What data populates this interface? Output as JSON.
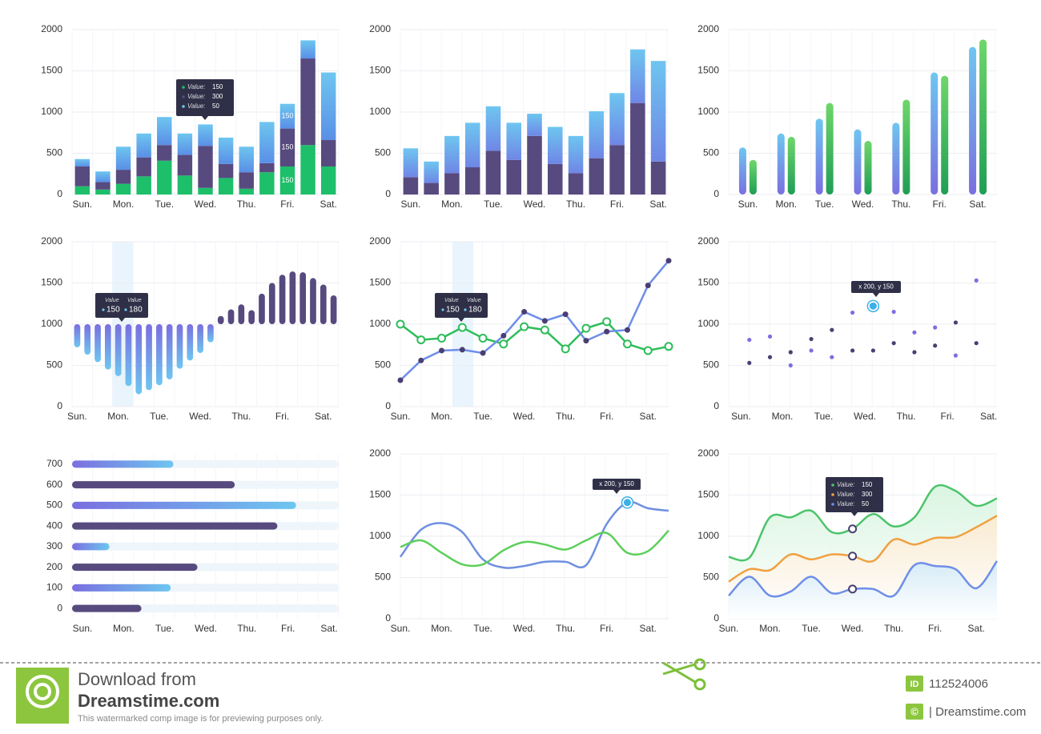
{
  "chart_data": [
    {
      "type": "stacked_bar",
      "categories": [
        "Sun.",
        null,
        "Mon.",
        null,
        "Tue.",
        null,
        "Wed.",
        null,
        "Thu.",
        null,
        "Fri.",
        null,
        "Sat."
      ],
      "ylim": [
        0,
        2000
      ],
      "yticks": [
        0,
        500,
        1000,
        1500,
        2000
      ],
      "series": [
        {
          "color": "#1dbf6a",
          "values": [
            100,
            60,
            130,
            220,
            410,
            230,
            80,
            200,
            70,
            270,
            340,
            600,
            340
          ]
        },
        {
          "color": "#574a7e",
          "values": [
            240,
            90,
            170,
            230,
            190,
            250,
            510,
            170,
            200,
            110,
            460,
            1050,
            320
          ]
        },
        {
          "color": "#6ec6f0",
          "color2": "#5a8fe6",
          "values": [
            90,
            130,
            280,
            290,
            340,
            260,
            260,
            320,
            310,
            500,
            300,
            220,
            820
          ]
        }
      ],
      "annotations": [
        "150",
        "150",
        "150"
      ],
      "tooltip": {
        "rows": [
          {
            "label": "Value:",
            "value": "150"
          },
          {
            "label": "Value:",
            "value": "300"
          },
          {
            "label": "Value:",
            "value": "50"
          }
        ]
      }
    },
    {
      "type": "stacked_bar",
      "categories": [
        "Sun.",
        null,
        "Mon.",
        null,
        "Tue.",
        null,
        "Wed.",
        null,
        "Thu.",
        null,
        "Fri.",
        null,
        "Sat."
      ],
      "ylim": [
        0,
        2000
      ],
      "yticks": [
        0,
        500,
        1000,
        1500,
        2000
      ],
      "series": [
        {
          "color": "#574a7e",
          "values": [
            210,
            140,
            260,
            330,
            530,
            420,
            710,
            370,
            260,
            440,
            600,
            1110,
            400
          ]
        },
        {
          "color": "#6ec6f0",
          "color2": "#6f86e6",
          "values": [
            350,
            260,
            450,
            540,
            540,
            450,
            270,
            450,
            450,
            570,
            630,
            650,
            1220
          ]
        }
      ]
    },
    {
      "type": "bar",
      "categories": [
        "Sun.",
        "Mon.",
        "Tue.",
        "Wed.",
        "Thu.",
        "Fri.",
        "Sat."
      ],
      "ylim": [
        0,
        2000
      ],
      "yticks": [
        0,
        500,
        1000,
        1500,
        2000
      ],
      "series": [
        {
          "color": "#6ec6f0",
          "color2": "#7a6fe0",
          "values": [
            570,
            740,
            920,
            790,
            870,
            1480,
            1790
          ]
        },
        {
          "color": "#6fd66a",
          "color2": "#1f9e55",
          "values": [
            420,
            700,
            1110,
            650,
            1150,
            1440,
            1880
          ]
        }
      ]
    },
    {
      "type": "diverging_bar",
      "categories": [
        "Sun.",
        null,
        null,
        null,
        "Mon.",
        null,
        null,
        null,
        "Tue.",
        null,
        null,
        null,
        "Wed.",
        null,
        null,
        null,
        "Thu.",
        null,
        null,
        null,
        "Fri.",
        null,
        null,
        null,
        "Sat.",
        null
      ],
      "ylim": [
        0,
        2000
      ],
      "yticks": [
        0,
        500,
        1000,
        1500,
        2000
      ],
      "baseline": 1000,
      "values": [
        720,
        630,
        540,
        450,
        370,
        250,
        150,
        200,
        260,
        330,
        460,
        560,
        650,
        780,
        1100,
        1180,
        1240,
        1170,
        1370,
        1500,
        1600,
        1640,
        1630,
        1560,
        1480,
        1350
      ],
      "color": "#574a7e",
      "color_below": "#7a6fe0",
      "color_below2": "#6ec6f0",
      "tooltip": {
        "rows": [
          {
            "label": "Value",
            "value": "150"
          },
          {
            "label": "Value",
            "value": "180"
          }
        ]
      }
    },
    {
      "type": "line",
      "categories": [
        "Sun.",
        null,
        "Mon.",
        null,
        "Tue.",
        null,
        "Wed.",
        null,
        "Thu.",
        null,
        "Fri.",
        null,
        "Sat.",
        null
      ],
      "ylim": [
        0,
        2000
      ],
      "yticks": [
        0,
        500,
        1000,
        1500,
        2000
      ],
      "series": [
        {
          "color": "#2dbd5a",
          "marker": "hollow",
          "values": [
            1000,
            810,
            830,
            960,
            830,
            760,
            970,
            930,
            700,
            950,
            1030,
            760,
            680,
            730
          ]
        },
        {
          "color": "#6e8ee8",
          "marker_color": "#4a3f72",
          "marker": "dot",
          "values": [
            320,
            560,
            680,
            690,
            650,
            860,
            1150,
            1040,
            1120,
            800,
            910,
            930,
            1470,
            1770
          ]
        }
      ],
      "tooltip": {
        "rows": [
          {
            "label": "Value",
            "value": "150"
          },
          {
            "label": "Value",
            "value": "180"
          }
        ]
      }
    },
    {
      "type": "scatter",
      "categories": [
        "Sun.",
        "Mon.",
        "Tue.",
        "Wed.",
        "Thu.",
        "Fri.",
        "Sat."
      ],
      "xlim": [
        -0.3,
        6.2
      ],
      "ylim": [
        0,
        2000
      ],
      "yticks": [
        0,
        500,
        1000,
        1500,
        2000
      ],
      "series": [
        {
          "color": "#7b6fe0",
          "x": [
            0.2,
            0.7,
            1.2,
            1.7,
            2.2,
            2.7,
            3.2,
            3.7,
            4.2,
            4.7,
            5.2,
            5.7
          ],
          "values": [
            810,
            850,
            500,
            680,
            600,
            1140,
            1220,
            1150,
            900,
            960,
            620,
            1530
          ]
        },
        {
          "color": "#4a3f72",
          "x": [
            0.2,
            0.7,
            1.2,
            1.7,
            2.2,
            2.7,
            3.2,
            3.7,
            4.2,
            4.7,
            5.2,
            5.7
          ],
          "values": [
            530,
            600,
            660,
            820,
            930,
            680,
            680,
            770,
            660,
            740,
            1020,
            770
          ]
        }
      ],
      "tooltip": {
        "text": "x 200, y 150"
      }
    },
    {
      "type": "hbar",
      "categories": [
        "700",
        "600",
        "500",
        "400",
        "300",
        "200",
        "100",
        "0"
      ],
      "values": [
        38,
        61,
        84,
        77,
        14,
        47,
        37,
        26
      ],
      "xlim": [
        0,
        100
      ],
      "colors": [
        "#7a6fe0",
        "#574a7e",
        "#7a6fe0",
        "#574a7e",
        "#7a6fe0",
        "#574a7e",
        "#7a6fe0",
        "#574a7e"
      ],
      "colors_end": [
        "#6ec6f0",
        "#574a7e",
        "#6ec6f0",
        "#574a7e",
        "#6ec6f0",
        "#574a7e",
        "#6ec6f0",
        "#574a7e"
      ],
      "track_color": "#eef5fb",
      "x_categories": [
        "Sun.",
        "Mon.",
        "Tue.",
        "Wed.",
        "Thu.",
        "Fri.",
        "Sat."
      ]
    },
    {
      "type": "spline",
      "categories": [
        "Sun.",
        null,
        "Mon.",
        null,
        "Tue.",
        null,
        "Wed.",
        null,
        "Thu.",
        null,
        "Fri.",
        null,
        "Sat.",
        null
      ],
      "ylim": [
        0,
        2000
      ],
      "yticks": [
        0,
        500,
        1000,
        1500,
        2000
      ],
      "series": [
        {
          "color": "#6f8fe0",
          "values": [
            750,
            1080,
            1160,
            1050,
            720,
            620,
            640,
            690,
            690,
            650,
            1150,
            1410,
            1340,
            1310
          ]
        },
        {
          "color": "#5ccf5a",
          "values": [
            870,
            950,
            800,
            660,
            660,
            830,
            930,
            900,
            840,
            950,
            1040,
            800,
            820,
            1070
          ]
        }
      ],
      "tooltip": {
        "text": "x 200, y 150"
      }
    },
    {
      "type": "area",
      "categories": [
        "Sun.",
        null,
        "Mon.",
        null,
        "Tue.",
        null,
        "Wed.",
        null,
        "Thu.",
        null,
        "Fri.",
        null,
        "Sat.",
        null
      ],
      "ylim": [
        0,
        2000
      ],
      "yticks": [
        0,
        500,
        1000,
        1500,
        2000
      ],
      "series": [
        {
          "color": "#4cc46a",
          "fill": "#d4f3dc",
          "values": [
            750,
            740,
            1230,
            1230,
            1310,
            1050,
            1090,
            1270,
            1120,
            1230,
            1600,
            1550,
            1370,
            1460
          ]
        },
        {
          "color": "#f0a040",
          "fill": "#fde9cf",
          "values": [
            450,
            600,
            590,
            780,
            720,
            780,
            760,
            700,
            960,
            900,
            980,
            990,
            1110,
            1250
          ]
        },
        {
          "color": "#6e8ee8",
          "fill": "#cfe9fa",
          "values": [
            280,
            510,
            280,
            330,
            510,
            310,
            360,
            360,
            280,
            650,
            640,
            600,
            370,
            700
          ]
        }
      ],
      "tooltip": {
        "rows": [
          {
            "label": "Value:",
            "value": "150"
          },
          {
            "label": "Value:",
            "value": "300"
          },
          {
            "label": "Value:",
            "value": "50"
          }
        ]
      }
    }
  ],
  "footer": {
    "line1": "Download from",
    "brand": "Dreamstime.com",
    "note": "This watermarked comp image is for previewing purposes only.",
    "id_label": "ID",
    "id": "112524006",
    "copyright_icon": "©",
    "copyright": "| Dreamstime.com"
  }
}
